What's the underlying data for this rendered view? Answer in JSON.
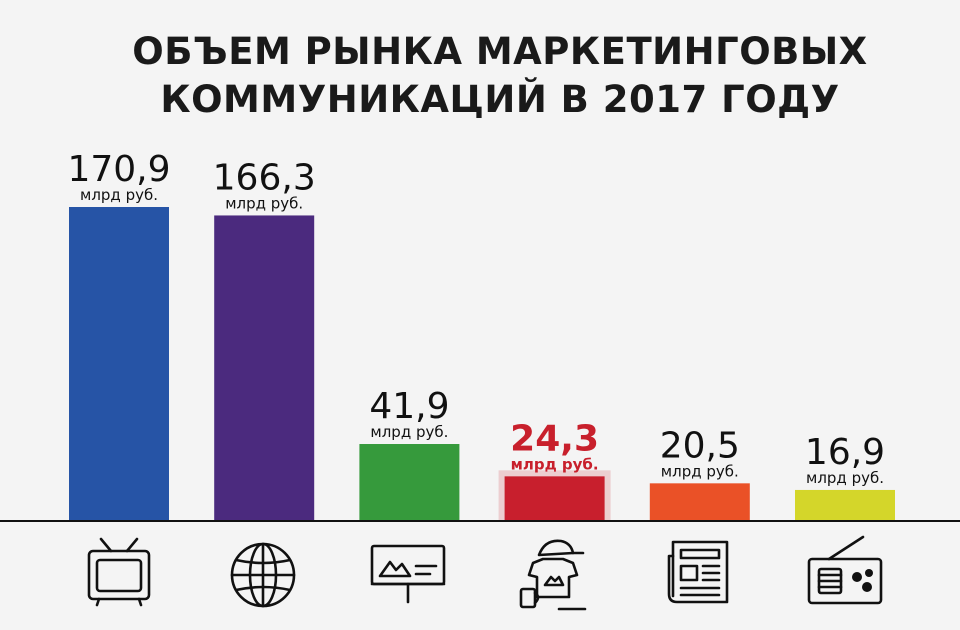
{
  "chart_data": {
    "type": "bar",
    "title_lines": [
      "ОБЪЕМ РЫНКА МАРКЕТИНГОВЫХ",
      "КОММУНИКАЦИЙ В 2017 ГОДУ"
    ],
    "categories": [
      "tv-icon",
      "globe-icon",
      "billboard-icon",
      "merchandise-icon",
      "newspaper-icon",
      "radio-icon"
    ],
    "values": [
      170.9,
      166.3,
      41.9,
      24.3,
      20.5,
      16.9
    ],
    "value_labels": [
      "170,9",
      "166,3",
      "41,9",
      "24,3",
      "20,5",
      "16,9"
    ],
    "unit_label": "млрд руб.",
    "colors": [
      "#2654a6",
      "#4b2a7e",
      "#369a3c",
      "#c81f2d",
      "#ea5127",
      "#d4d62a"
    ],
    "highlight_index": 3,
    "highlight_color": "#c8202c"
  }
}
